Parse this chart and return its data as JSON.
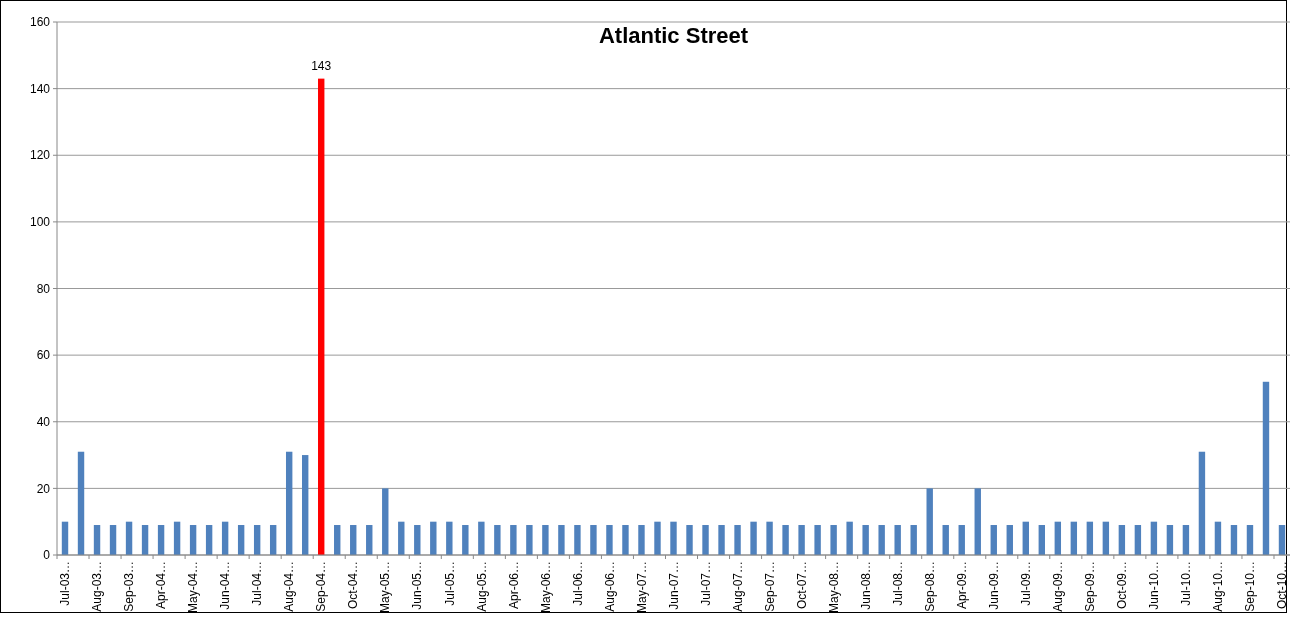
{
  "chart_data": {
    "type": "bar",
    "title": "Atlantic Street",
    "categories": [
      "Jul-03…",
      null,
      "Aug-03…",
      null,
      "Sep-03…",
      null,
      "Apr-04…",
      null,
      "May-04…",
      null,
      "Jun-04…",
      null,
      "Jul-04…",
      null,
      "Aug-04…",
      null,
      "Sep-04…",
      null,
      "Oct-04…",
      null,
      "May-05…",
      null,
      "Jun-05…",
      null,
      "Jul-05…",
      null,
      "Aug-05…",
      null,
      "Apr-06…",
      null,
      "May-06…",
      null,
      "Jul-06…",
      null,
      "Aug-06…",
      null,
      "May-07…",
      null,
      "Jun-07…",
      null,
      "Jul-07…",
      null,
      "Aug-07…",
      null,
      "Sep-07…",
      null,
      "Oct-07…",
      null,
      "May-08…",
      null,
      "Jun-08…",
      null,
      "Jul-08…",
      null,
      "Sep-08…",
      null,
      "Apr-09…",
      null,
      "Jun-09…",
      null,
      "Jul-09…",
      null,
      "Aug-09…",
      null,
      "Sep-09…",
      null,
      "Oct-09…",
      null,
      "Jun-10…",
      null,
      "Jul-10…",
      null,
      "Aug-10…",
      null,
      "Sep-10…",
      null,
      "Oct-10…"
    ],
    "values": [
      10,
      31,
      9,
      9,
      10,
      9,
      9,
      10,
      9,
      9,
      10,
      9,
      9,
      9,
      31,
      30,
      143,
      9,
      9,
      9,
      20,
      10,
      9,
      10,
      10,
      9,
      10,
      9,
      9,
      9,
      9,
      9,
      9,
      9,
      9,
      9,
      9,
      10,
      10,
      9,
      9,
      9,
      9,
      10,
      10,
      9,
      9,
      9,
      9,
      10,
      9,
      9,
      9,
      9,
      20,
      9,
      9,
      20,
      9,
      9,
      10,
      9,
      10,
      10,
      10,
      10,
      9,
      9,
      10,
      9,
      9,
      31,
      10,
      9,
      9,
      52,
      9
    ],
    "colors": [
      "#4f81bd",
      "#4f81bd",
      "#4f81bd",
      "#4f81bd",
      "#4f81bd",
      "#4f81bd",
      "#4f81bd",
      "#4f81bd",
      "#4f81bd",
      "#4f81bd",
      "#4f81bd",
      "#4f81bd",
      "#4f81bd",
      "#4f81bd",
      "#4f81bd",
      "#4f81bd",
      "#ff0000",
      "#4f81bd",
      "#4f81bd",
      "#4f81bd",
      "#4f81bd",
      "#4f81bd",
      "#4f81bd",
      "#4f81bd",
      "#4f81bd",
      "#4f81bd",
      "#4f81bd",
      "#4f81bd",
      "#4f81bd",
      "#4f81bd",
      "#4f81bd",
      "#4f81bd",
      "#4f81bd",
      "#4f81bd",
      "#4f81bd",
      "#4f81bd",
      "#4f81bd",
      "#4f81bd",
      "#4f81bd",
      "#4f81bd",
      "#4f81bd",
      "#4f81bd",
      "#4f81bd",
      "#4f81bd",
      "#4f81bd",
      "#4f81bd",
      "#4f81bd",
      "#4f81bd",
      "#4f81bd",
      "#4f81bd",
      "#4f81bd",
      "#4f81bd",
      "#4f81bd",
      "#4f81bd",
      "#4f81bd",
      "#4f81bd",
      "#4f81bd",
      "#4f81bd",
      "#4f81bd",
      "#4f81bd",
      "#4f81bd",
      "#4f81bd",
      "#4f81bd",
      "#4f81bd",
      "#4f81bd",
      "#4f81bd",
      "#4f81bd",
      "#4f81bd",
      "#4f81bd",
      "#4f81bd",
      "#4f81bd",
      "#4f81bd",
      "#4f81bd",
      "#4f81bd",
      "#4f81bd",
      "#4f81bd",
      "#4f81bd"
    ],
    "value_labels": [
      null,
      null,
      null,
      null,
      null,
      null,
      null,
      null,
      null,
      null,
      null,
      null,
      null,
      null,
      null,
      null,
      "143",
      null,
      null,
      null,
      null,
      null,
      null,
      null,
      null,
      null,
      null,
      null,
      null,
      null,
      null,
      null,
      null,
      null,
      null,
      null,
      null,
      null,
      null,
      null,
      null,
      null,
      null,
      null,
      null,
      null,
      null,
      null,
      null,
      null,
      null,
      null,
      null,
      null,
      null,
      null,
      null,
      null,
      null,
      null,
      null,
      null,
      null,
      null,
      null,
      null,
      null,
      null,
      null,
      null,
      null,
      null,
      null,
      null,
      null,
      null,
      null
    ],
    "ylim": [
      0,
      160
    ],
    "yticks": [
      0,
      20,
      40,
      60,
      80,
      100,
      120,
      140,
      160
    ],
    "grid": "y"
  }
}
